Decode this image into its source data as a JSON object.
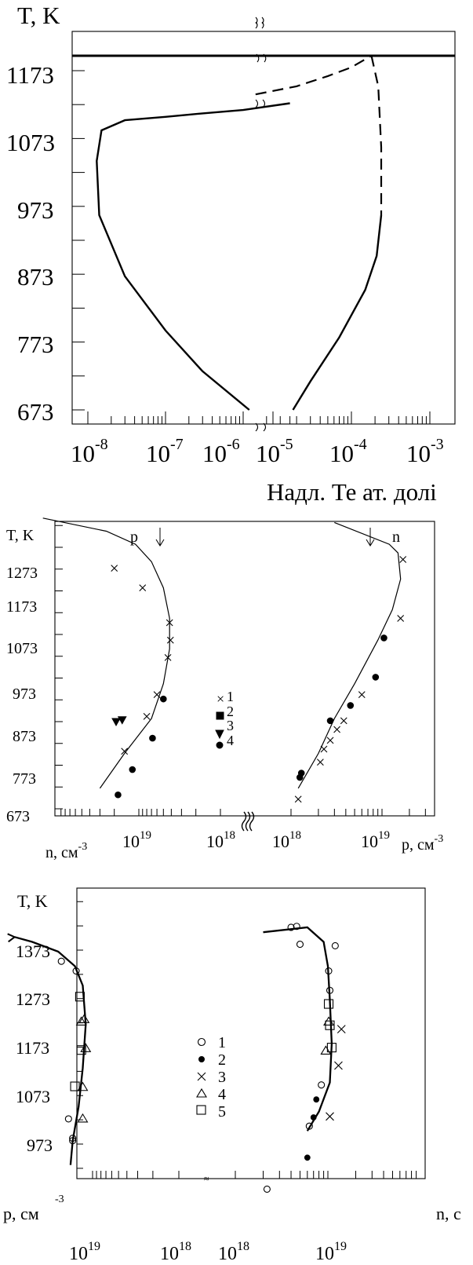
{
  "chart_data": [
    {
      "type": "line",
      "ylabel": "T, K",
      "xlabel": "Надл. Те ат. долі",
      "y_ticks": [
        "1173",
        "1073",
        "973",
        "873",
        "773",
        "673"
      ],
      "x_ticks": [
        {
          "base": "10",
          "exp": "-8"
        },
        {
          "base": "10",
          "exp": "-7"
        },
        {
          "base": "10",
          "exp": "-6"
        },
        {
          "base": "10",
          "exp": "-5"
        },
        {
          "base": "10",
          "exp": "-4"
        },
        {
          "base": "10",
          "exp": "-3"
        }
      ],
      "x_scale": "log, broken axis",
      "series": [
        {
          "style": "solid",
          "x": [
            1.2e-06,
            3e-07,
            1e-07,
            3e-08,
            1.4e-08,
            1.3e-08,
            1.5e-08,
            3e-08,
            1e-07,
            3e-07,
            1e-06,
            4e-06
          ],
          "y": [
            673,
            730,
            790,
            870,
            960,
            1040,
            1085,
            1100,
            1105,
            1110,
            1115,
            1125
          ]
        },
        {
          "style": "dashed",
          "x": [
            6e-06,
            2e-05,
            5e-05,
            0.0001,
            0.00018
          ],
          "y": [
            1138,
            1150,
            1165,
            1178,
            1195
          ]
        },
        {
          "style": "dashed",
          "x": [
            0.00018,
            0.00022,
            0.00024,
            0.00024
          ],
          "y": [
            1195,
            1150,
            1060,
            960
          ]
        },
        {
          "style": "solid",
          "x": [
            0.00024,
            0.00021,
            0.00015,
            7e-05,
            3e-05,
            1.8e-05
          ],
          "y": [
            960,
            900,
            850,
            780,
            715,
            673
          ]
        },
        {
          "style": "solid-thick",
          "x": [
            1e-08,
            0.001
          ],
          "y": [
            1195,
            1195
          ]
        }
      ]
    },
    {
      "type": "scatter",
      "ylabel": "T, K",
      "xlabel_left": "n, см",
      "xlabel_left_exp": "-3",
      "xlabel_right": "p, см",
      "xlabel_right_exp": "-3",
      "y_ticks": [
        "1273",
        "1173",
        "1073",
        "973",
        "873",
        "773",
        "673"
      ],
      "x_ticks": [
        {
          "base": "10",
          "exp": "19"
        },
        {
          "base": "10",
          "exp": "18"
        },
        {
          "base": "10",
          "exp": "18"
        },
        {
          "base": "10",
          "exp": "19"
        }
      ],
      "annotations": [
        "p",
        "n"
      ],
      "legend": [
        "1",
        "2",
        "3",
        "4"
      ],
      "curves": [
        {
          "side": "left",
          "label": "n",
          "x": [
            3e+19,
            1.5e+19,
            7e+18,
            5e+18,
            4.2e+18,
            4.2e+18,
            5e+18,
            7e+18,
            1.1e+19,
            2.5e+19,
            1.5e+20
          ],
          "y": [
            720,
            800,
            880,
            960,
            1040,
            1110,
            1180,
            1240,
            1280,
            1310,
            1340
          ]
        },
        {
          "side": "right",
          "label": "p",
          "x": [
            1.2e+18,
            2e+18,
            3e+18,
            5e+18,
            9e+18,
            1.3e+19,
            1.6e+19,
            1.5e+19,
            1.2e+19,
            3e+18
          ],
          "y": [
            720,
            800,
            880,
            960,
            1060,
            1130,
            1200,
            1260,
            1280,
            1330
          ]
        }
      ],
      "series": [
        {
          "name": "1",
          "marker": "x",
          "points": [
            {
              "side": "left",
              "x": 2e+19,
              "y": 1225
            },
            {
              "side": "left",
              "x": 9e+18,
              "y": 1180
            },
            {
              "side": "left",
              "x": 4.2e+18,
              "y": 1100
            },
            {
              "side": "left",
              "x": 4.1e+18,
              "y": 1060
            },
            {
              "side": "left",
              "x": 4.4e+18,
              "y": 1020
            },
            {
              "side": "left",
              "x": 6e+18,
              "y": 935
            },
            {
              "side": "left",
              "x": 8e+18,
              "y": 885
            },
            {
              "side": "left",
              "x": 1.5e+19,
              "y": 805
            },
            {
              "side": "right",
              "x": 1.7e+19,
              "y": 1245
            },
            {
              "side": "right",
              "x": 1.6e+19,
              "y": 1110
            },
            {
              "side": "right",
              "x": 6e+18,
              "y": 935
            },
            {
              "side": "right",
              "x": 3.8e+18,
              "y": 875
            },
            {
              "side": "right",
              "x": 3.2e+18,
              "y": 855
            },
            {
              "side": "right",
              "x": 2.7e+18,
              "y": 830
            },
            {
              "side": "right",
              "x": 2.3e+18,
              "y": 810
            },
            {
              "side": "right",
              "x": 2.1e+18,
              "y": 780
            },
            {
              "side": "right",
              "x": 1.2e+18,
              "y": 695
            }
          ]
        },
        {
          "name": "2",
          "marker": "filled-square",
          "points": []
        },
        {
          "name": "3",
          "marker": "filled-triangle-down",
          "points": [
            {
              "side": "left",
              "x": 1.9e+19,
              "y": 873
            },
            {
              "side": "left",
              "x": 1.6e+19,
              "y": 877
            }
          ]
        },
        {
          "name": "4",
          "marker": "filled-circle",
          "points": [
            {
              "side": "left",
              "x": 5e+18,
              "y": 925
            },
            {
              "side": "left",
              "x": 6.8e+18,
              "y": 835
            },
            {
              "side": "left",
              "x": 1.2e+19,
              "y": 763
            },
            {
              "side": "left",
              "x": 1.8e+19,
              "y": 705
            },
            {
              "side": "right",
              "x": 1.25e+18,
              "y": 745
            },
            {
              "side": "right",
              "x": 1.3e+18,
              "y": 755
            },
            {
              "side": "right",
              "x": 2.7e+18,
              "y": 875
            },
            {
              "side": "right",
              "x": 4.5e+18,
              "y": 910
            },
            {
              "side": "right",
              "x": 8.5e+18,
              "y": 975
            },
            {
              "side": "right",
              "x": 1.05e+19,
              "y": 1065
            }
          ]
        }
      ]
    },
    {
      "type": "scatter",
      "ylabel": "T, K",
      "xlabel_left": "p, см",
      "xlabel_left_exp": "-3",
      "xlabel_right": "n, с",
      "y_ticks": [
        "1373",
        "1273",
        "1173",
        "1073",
        "973"
      ],
      "x_ticks": [
        {
          "base": "10",
          "exp": "19"
        },
        {
          "base": "10",
          "exp": "18"
        },
        {
          "base": "10",
          "exp": "18"
        },
        {
          "base": "10",
          "exp": "19"
        }
      ],
      "legend": [
        "1",
        "2",
        "3",
        "4",
        "5"
      ],
      "curves": [
        {
          "side": "left",
          "label": "p",
          "x": [
            1.8e+19,
            1.7e+19,
            1.45e+19,
            1.3e+19,
            1.2e+19,
            1.3e+19,
            1.6e+19,
            2.5e+19,
            5e+19,
            8e+19
          ],
          "y": [
            930,
            980,
            1050,
            1130,
            1220,
            1300,
            1340,
            1370,
            1390,
            1400
          ]
        },
        {
          "side": "right",
          "label": "n",
          "x": [
            6e+18,
            8e+18,
            1.05e+19,
            1.1e+19,
            1.05e+19,
            1e+19,
            9e+18,
            6e+18,
            2e+18
          ],
          "y": [
            1000,
            1040,
            1100,
            1180,
            1270,
            1340,
            1390,
            1420,
            1410
          ]
        }
      ],
      "series": [
        {
          "name": "1",
          "marker": "open-circle",
          "points": [
            {
              "side": "left",
              "x": 1.7e+19,
              "y": 980
            },
            {
              "side": "left",
              "x": 1.7e+19,
              "y": 985
            },
            {
              "side": "left",
              "x": 1.9e+19,
              "y": 1025
            },
            {
              "side": "left",
              "x": 1.55e+19,
              "y": 1330
            },
            {
              "side": "left",
              "x": 2.3e+19,
              "y": 1350
            },
            {
              "side": "right",
              "x": 4e+18,
              "y": 1420
            },
            {
              "side": "right",
              "x": 4.6e+18,
              "y": 1422
            },
            {
              "side": "right",
              "x": 5e+18,
              "y": 1385
            },
            {
              "side": "right",
              "x": 1.2e+19,
              "y": 1382
            },
            {
              "side": "right",
              "x": 1.02e+19,
              "y": 1330
            },
            {
              "side": "right",
              "x": 1.05e+19,
              "y": 1290
            },
            {
              "side": "right",
              "x": 8.5e+18,
              "y": 1095
            },
            {
              "side": "right",
              "x": 6.3e+18,
              "y": 1010
            },
            {
              "side": "right",
              "x": 2.2e+18,
              "y": 880
            }
          ]
        },
        {
          "name": "2",
          "marker": "filled-circle",
          "points": [
            {
              "side": "right",
              "x": 7.5e+18,
              "y": 1065
            },
            {
              "side": "right",
              "x": 7e+18,
              "y": 1028
            },
            {
              "side": "right",
              "x": 6e+18,
              "y": 945
            }
          ]
        },
        {
          "name": "3",
          "marker": "x",
          "points": [
            {
              "side": "right",
              "x": 1.05e+19,
              "y": 1030
            },
            {
              "side": "right",
              "x": 1.4e+19,
              "y": 1210
            },
            {
              "side": "right",
              "x": 1.3e+19,
              "y": 1135
            }
          ]
        },
        {
          "name": "4",
          "marker": "open-triangle",
          "points": [
            {
              "side": "left",
              "x": 1.25e+19,
              "y": 1230
            },
            {
              "side": "left",
              "x": 1.35e+19,
              "y": 1225
            },
            {
              "side": "left",
              "x": 1.2e+19,
              "y": 1170
            },
            {
              "side": "left",
              "x": 1.3e+19,
              "y": 1090
            },
            {
              "side": "left",
              "x": 1.3e+19,
              "y": 1025
            },
            {
              "side": "right",
              "x": 1.02e+19,
              "y": 1225
            },
            {
              "side": "right",
              "x": 9.5e+18,
              "y": 1165
            }
          ]
        },
        {
          "name": "5",
          "marker": "open-square",
          "points": [
            {
              "side": "left",
              "x": 1.4e+19,
              "y": 1277
            },
            {
              "side": "left",
              "x": 1.35e+19,
              "y": 1167
            },
            {
              "side": "left",
              "x": 1.6e+19,
              "y": 1092
            },
            {
              "side": "right",
              "x": 1.02e+19,
              "y": 1262
            },
            {
              "side": "right",
              "x": 1.05e+19,
              "y": 1218
            },
            {
              "side": "right",
              "x": 1.1e+19,
              "y": 1172
            }
          ]
        }
      ]
    }
  ]
}
